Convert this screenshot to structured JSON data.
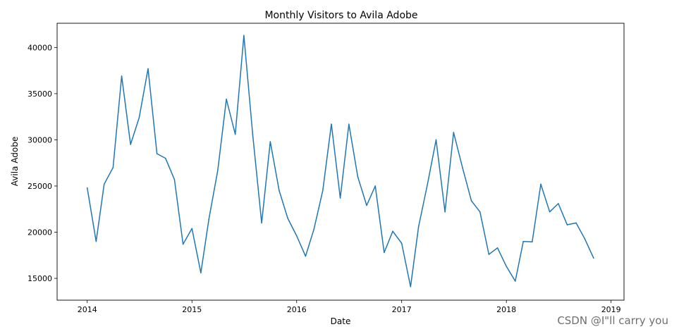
{
  "chart_data": {
    "type": "line",
    "title": "Monthly Visitors to Avila Adobe",
    "xlabel": "Date",
    "ylabel": "Avila Adobe",
    "xlim": [
      "2013-09-18",
      "2019-02-15"
    ],
    "ylim": [
      12640,
      42620
    ],
    "grid": false,
    "x_ticks": [
      {
        "date": "2014-01-01",
        "label": "2014"
      },
      {
        "date": "2015-01-01",
        "label": "2015"
      },
      {
        "date": "2016-01-01",
        "label": "2016"
      },
      {
        "date": "2017-01-01",
        "label": "2017"
      },
      {
        "date": "2018-01-01",
        "label": "2018"
      },
      {
        "date": "2019-01-01",
        "label": "2019"
      }
    ],
    "y_ticks": [
      15000,
      20000,
      25000,
      30000,
      35000,
      40000
    ],
    "series": [
      {
        "color": "#1f77b4",
        "x": [
          "2014-01",
          "2014-02",
          "2014-03",
          "2014-04",
          "2014-05",
          "2014-06",
          "2014-07",
          "2014-08",
          "2014-09",
          "2014-10",
          "2014-11",
          "2014-12",
          "2015-01",
          "2015-02",
          "2015-03",
          "2015-04",
          "2015-05",
          "2015-06",
          "2015-07",
          "2015-08",
          "2015-09",
          "2015-10",
          "2015-11",
          "2015-12",
          "2016-01",
          "2016-02",
          "2016-03",
          "2016-04",
          "2016-05",
          "2016-06",
          "2016-07",
          "2016-08",
          "2016-09",
          "2016-10",
          "2016-11",
          "2016-12",
          "2017-01",
          "2017-02",
          "2017-03",
          "2017-04",
          "2017-05",
          "2017-06",
          "2017-07",
          "2017-08",
          "2017-09",
          "2017-10",
          "2017-11",
          "2017-12",
          "2018-01",
          "2018-02",
          "2018-03",
          "2018-04",
          "2018-05",
          "2018-06",
          "2018-07",
          "2018-08",
          "2018-09",
          "2018-10",
          "2018-11"
        ],
        "values": [
          24800,
          19000,
          25200,
          27000,
          36900,
          29500,
          32400,
          37700,
          28500,
          28000,
          25700,
          18700,
          20400,
          15600,
          21400,
          26700,
          34400,
          30600,
          41300,
          30500,
          21000,
          29800,
          24500,
          21500,
          19600,
          17400,
          20300,
          24500,
          31700,
          23700,
          31700,
          26000,
          22900,
          25000,
          17800,
          20100,
          18800,
          14100,
          20600,
          25200,
          30000,
          22200,
          30800,
          27000,
          23400,
          22200,
          17600,
          18300,
          16300,
          14700,
          19000,
          18950,
          25200,
          22200,
          23100,
          20800,
          21000,
          19300,
          17200
        ]
      }
    ]
  },
  "watermark": "CSDN @I\"ll  carry  you"
}
